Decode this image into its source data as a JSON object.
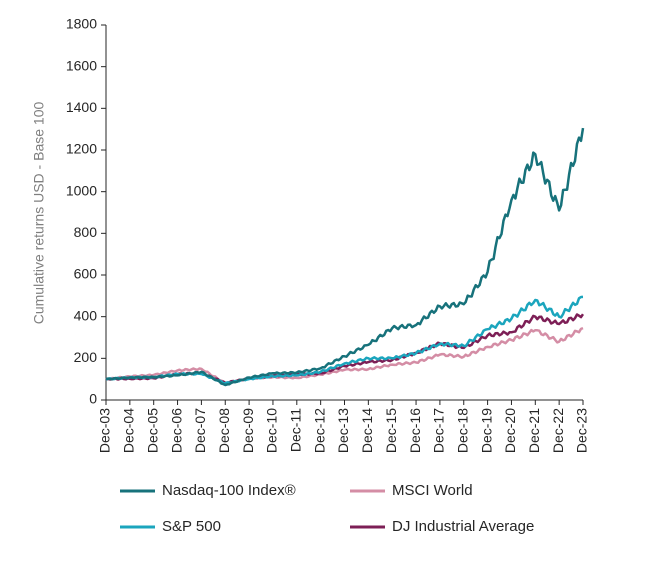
{
  "chart_data": {
    "type": "line",
    "title": "",
    "xlabel": "",
    "ylabel": "Cumulative returns USD - Base 100",
    "ylim": [
      0,
      1800
    ],
    "yticks": [
      "0",
      "200",
      "400",
      "600",
      "800",
      "1000",
      "1200",
      "1400",
      "1600",
      "1800"
    ],
    "categories": [
      "Dec-03",
      "Dec-04",
      "Dec-05",
      "Dec-06",
      "Dec-07",
      "Dec-08",
      "Dec-09",
      "Dec-10",
      "Dec-11",
      "Dec-12",
      "Dec-13",
      "Dec-14",
      "Dec-15",
      "Dec-16",
      "Dec-17",
      "Dec-18",
      "Dec-19",
      "Dec-20",
      "Dec-21",
      "Dec-22",
      "Dec-23"
    ],
    "grid": false,
    "legend_position": "bottom",
    "series": [
      {
        "name": "Nasdaq-100 Index®",
        "color": "#17727b",
        "values": [
          100,
          108,
          110,
          118,
          135,
          72,
          108,
          128,
          132,
          152,
          210,
          265,
          345,
          360,
          450,
          460,
          615,
          960,
          1180,
          910,
          1305
        ]
      },
      {
        "name": "MSCI World",
        "color": "#d48da5",
        "values": [
          100,
          113,
          120,
          142,
          150,
          80,
          104,
          110,
          106,
          122,
          145,
          148,
          170,
          180,
          218,
          208,
          255,
          288,
          335,
          280,
          345
        ]
      },
      {
        "name": "S&P 500",
        "color": "#1ba5bd",
        "values": [
          100,
          108,
          110,
          125,
          125,
          80,
          101,
          114,
          118,
          135,
          175,
          200,
          200,
          225,
          270,
          260,
          340,
          390,
          480,
          400,
          495
        ]
      },
      {
        "name": "DJ Industrial Average",
        "color": "#7d1f56",
        "values": [
          100,
          102,
          104,
          124,
          130,
          83,
          103,
          115,
          122,
          128,
          163,
          182,
          192,
          226,
          272,
          250,
          310,
          325,
          400,
          365,
          412
        ]
      }
    ]
  }
}
